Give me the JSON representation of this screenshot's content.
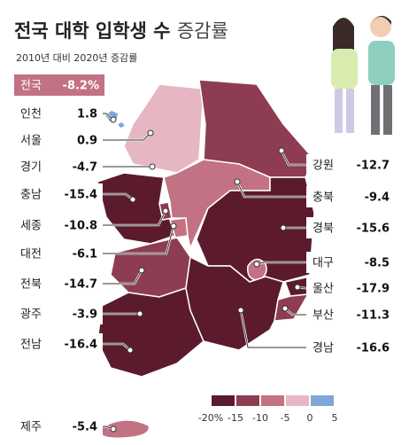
{
  "title": "전국 대학 입학생 수",
  "title_suffix": "증감률",
  "subtitle": "2010년 대비 2020년 증감률",
  "national": {
    "name": "전국",
    "value": -8.2,
    "value_label": "-8.2%"
  },
  "regions": [
    {
      "name": "인천",
      "value": 1.8,
      "side": "left"
    },
    {
      "name": "서울",
      "value": 0.9,
      "side": "left"
    },
    {
      "name": "경기",
      "value": -4.7,
      "side": "left"
    },
    {
      "name": "충남",
      "value": -15.4,
      "side": "left"
    },
    {
      "name": "세종",
      "value": -10.8,
      "side": "left"
    },
    {
      "name": "대전",
      "value": -6.1,
      "side": "left"
    },
    {
      "name": "전북",
      "value": -14.7,
      "side": "left"
    },
    {
      "name": "광주",
      "value": -3.9,
      "side": "left"
    },
    {
      "name": "전남",
      "value": -16.4,
      "side": "left"
    },
    {
      "name": "제주",
      "value": -5.4,
      "side": "left"
    },
    {
      "name": "강원",
      "value": -12.7,
      "side": "right"
    },
    {
      "name": "충북",
      "value": -9.4,
      "side": "right"
    },
    {
      "name": "경북",
      "value": -15.6,
      "side": "right"
    },
    {
      "name": "대구",
      "value": -8.5,
      "side": "right"
    },
    {
      "name": "울산",
      "value": -17.9,
      "side": "right"
    },
    {
      "name": "부산",
      "value": -11.3,
      "side": "right"
    },
    {
      "name": "경남",
      "value": -16.6,
      "side": "right"
    }
  ],
  "legend": {
    "ticks": [
      {
        "value": -20,
        "label": "-20%"
      },
      -15,
      -10,
      -5,
      0,
      5
    ],
    "colors": [
      "#5c1b2c",
      "#8e3c52",
      "#c27282",
      "#e6b7c3",
      "#7ea6d8"
    ]
  }
}
